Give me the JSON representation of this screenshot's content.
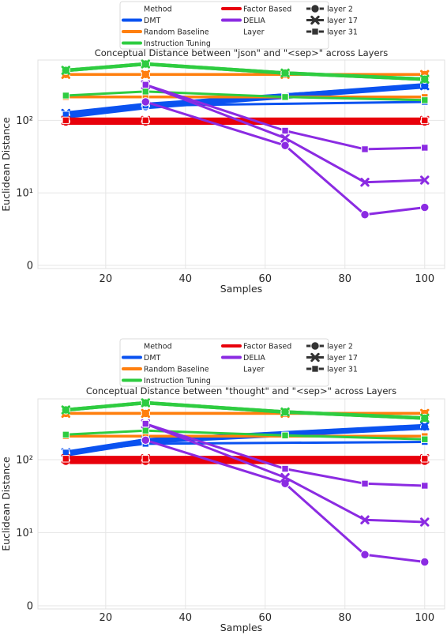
{
  "chart_data": [
    {
      "type": "line",
      "title": "Conceptual Distance between \"json\" and \"<sep>\" across Layers",
      "xlabel": "Samples",
      "ylabel": "Euclidean Distance",
      "xticks": [
        "20",
        "40",
        "60",
        "80",
        "100"
      ],
      "yticks": [
        "0",
        "10¹",
        "10²"
      ],
      "y_scale": "log",
      "grid": true,
      "legend_placement": "top",
      "legend": {
        "method_title": "Method",
        "layer_title": "Layer",
        "methods": [
          "DMT",
          "Random Baseline",
          "Instruction Tuning",
          "Factor Based",
          "DELIA"
        ],
        "layers": [
          "layer 2",
          "layer 17",
          "layer 31"
        ]
      },
      "series": [
        {
          "method": "DMT",
          "layer": "layer 2",
          "x": [
            10,
            30,
            100
          ],
          "y": [
            115,
            155,
            300
          ]
        },
        {
          "method": "DMT",
          "layer": "layer 17",
          "x": [
            10,
            30,
            100
          ],
          "y": [
            125,
            165,
            300
          ]
        },
        {
          "method": "DMT",
          "layer": "layer 31",
          "x": [
            10,
            30,
            100
          ],
          "y": [
            120,
            160,
            180
          ]
        },
        {
          "method": "Random Baseline",
          "layer": "layer 2",
          "x": [
            10,
            30,
            65,
            100
          ],
          "y": [
            430,
            430,
            430,
            430
          ]
        },
        {
          "method": "Random Baseline",
          "layer": "layer 17",
          "x": [
            10,
            30,
            65,
            100
          ],
          "y": [
            430,
            430,
            430,
            430
          ]
        },
        {
          "method": "Random Baseline",
          "layer": "layer 31",
          "x": [
            10,
            30,
            65,
            100
          ],
          "y": [
            210,
            210,
            210,
            210
          ]
        },
        {
          "method": "Instruction Tuning",
          "layer": "layer 2",
          "x": [
            10,
            30,
            65,
            100
          ],
          "y": [
            490,
            600,
            450,
            370
          ]
        },
        {
          "method": "Instruction Tuning",
          "layer": "layer 17",
          "x": [
            10,
            30,
            65,
            100
          ],
          "y": [
            490,
            600,
            450,
            370
          ]
        },
        {
          "method": "Instruction Tuning",
          "layer": "layer 31",
          "x": [
            10,
            30,
            65,
            100
          ],
          "y": [
            220,
            250,
            210,
            190
          ]
        },
        {
          "method": "Factor Based",
          "layer": "layer 2",
          "x": [
            10,
            30,
            100
          ],
          "y": [
            95,
            95,
            95
          ]
        },
        {
          "method": "Factor Based",
          "layer": "layer 17",
          "x": [
            10,
            30,
            100
          ],
          "y": [
            100,
            100,
            100
          ]
        },
        {
          "method": "Factor Based",
          "layer": "layer 31",
          "x": [
            10,
            30,
            100
          ],
          "y": [
            100,
            100,
            100
          ]
        },
        {
          "method": "DELIA",
          "layer": "layer 2",
          "x": [
            30,
            65,
            85,
            100
          ],
          "y": [
            180,
            45,
            7,
            8
          ]
        },
        {
          "method": "DELIA",
          "layer": "layer 17",
          "x": [
            30,
            65,
            85,
            100
          ],
          "y": [
            310,
            57,
            14,
            15
          ]
        },
        {
          "method": "DELIA",
          "layer": "layer 31",
          "x": [
            30,
            65,
            85,
            100
          ],
          "y": [
            310,
            72,
            40,
            42
          ]
        }
      ]
    },
    {
      "type": "line",
      "title": "Conceptual Distance between \"thought\" and \"<sep>\" across Layers",
      "xlabel": "Samples",
      "ylabel": "Euclidean Distance",
      "xticks": [
        "20",
        "40",
        "60",
        "80",
        "100"
      ],
      "yticks": [
        "0",
        "10¹",
        "10²"
      ],
      "y_scale": "log",
      "grid": true,
      "legend_placement": "top",
      "legend": {
        "method_title": "Method",
        "layer_title": "Layer",
        "methods": [
          "DMT",
          "Random Baseline",
          "Instruction Tuning",
          "Factor Based",
          "DELIA"
        ],
        "layers": [
          "layer 2",
          "layer 17",
          "layer 31"
        ]
      },
      "series": [
        {
          "method": "DMT",
          "layer": "layer 2",
          "x": [
            10,
            30,
            100
          ],
          "y": [
            120,
            180,
            280
          ]
        },
        {
          "method": "DMT",
          "layer": "layer 17",
          "x": [
            10,
            30,
            100
          ],
          "y": [
            125,
            185,
            290
          ]
        },
        {
          "method": "DMT",
          "layer": "layer 31",
          "x": [
            10,
            30,
            100
          ],
          "y": [
            125,
            165,
            175
          ]
        },
        {
          "method": "Random Baseline",
          "layer": "layer 2",
          "x": [
            10,
            30,
            65,
            100
          ],
          "y": [
            430,
            430,
            430,
            430
          ]
        },
        {
          "method": "Random Baseline",
          "layer": "layer 17",
          "x": [
            10,
            30,
            65,
            100
          ],
          "y": [
            430,
            430,
            430,
            430
          ]
        },
        {
          "method": "Random Baseline",
          "layer": "layer 31",
          "x": [
            10,
            30,
            65,
            100
          ],
          "y": [
            210,
            210,
            210,
            210
          ]
        },
        {
          "method": "Instruction Tuning",
          "layer": "layer 2",
          "x": [
            10,
            30,
            65,
            100
          ],
          "y": [
            480,
            600,
            450,
            370
          ]
        },
        {
          "method": "Instruction Tuning",
          "layer": "layer 17",
          "x": [
            10,
            30,
            65,
            100
          ],
          "y": [
            480,
            600,
            450,
            370
          ]
        },
        {
          "method": "Instruction Tuning",
          "layer": "layer 31",
          "x": [
            10,
            30,
            65,
            100
          ],
          "y": [
            220,
            250,
            215,
            190
          ]
        },
        {
          "method": "Factor Based",
          "layer": "layer 2",
          "x": [
            10,
            30,
            100
          ],
          "y": [
            95,
            95,
            95
          ]
        },
        {
          "method": "Factor Based",
          "layer": "layer 17",
          "x": [
            10,
            30,
            100
          ],
          "y": [
            103,
            103,
            103
          ]
        },
        {
          "method": "Factor Based",
          "layer": "layer 31",
          "x": [
            10,
            30,
            100
          ],
          "y": [
            103,
            103,
            103
          ]
        },
        {
          "method": "DELIA",
          "layer": "layer 2",
          "x": [
            30,
            65,
            85,
            100
          ],
          "y": [
            185,
            47,
            7,
            6
          ]
        },
        {
          "method": "DELIA",
          "layer": "layer 17",
          "x": [
            30,
            65,
            85,
            100
          ],
          "y": [
            310,
            57,
            15,
            14
          ]
        },
        {
          "method": "DELIA",
          "layer": "layer 31",
          "x": [
            30,
            65,
            85,
            100
          ],
          "y": [
            310,
            75,
            47,
            44
          ]
        }
      ]
    }
  ],
  "colors": {
    "DMT": "#0a52f0",
    "Random Baseline": "#ff7f0e",
    "Instruction Tuning": "#2ecc40",
    "Factor Based": "#e8000b",
    "DELIA": "#8b2be2",
    "grid": "#e6e6e6",
    "text": "#262626"
  },
  "line_widths": {
    "DMT": [
      7,
      5,
      3
    ],
    "Random Baseline": [
      3.5,
      3.5,
      3.5
    ],
    "Instruction Tuning": [
      4.5,
      4.5,
      3
    ],
    "Factor Based": [
      7,
      7,
      7
    ],
    "DELIA": [
      3,
      3,
      3
    ]
  }
}
